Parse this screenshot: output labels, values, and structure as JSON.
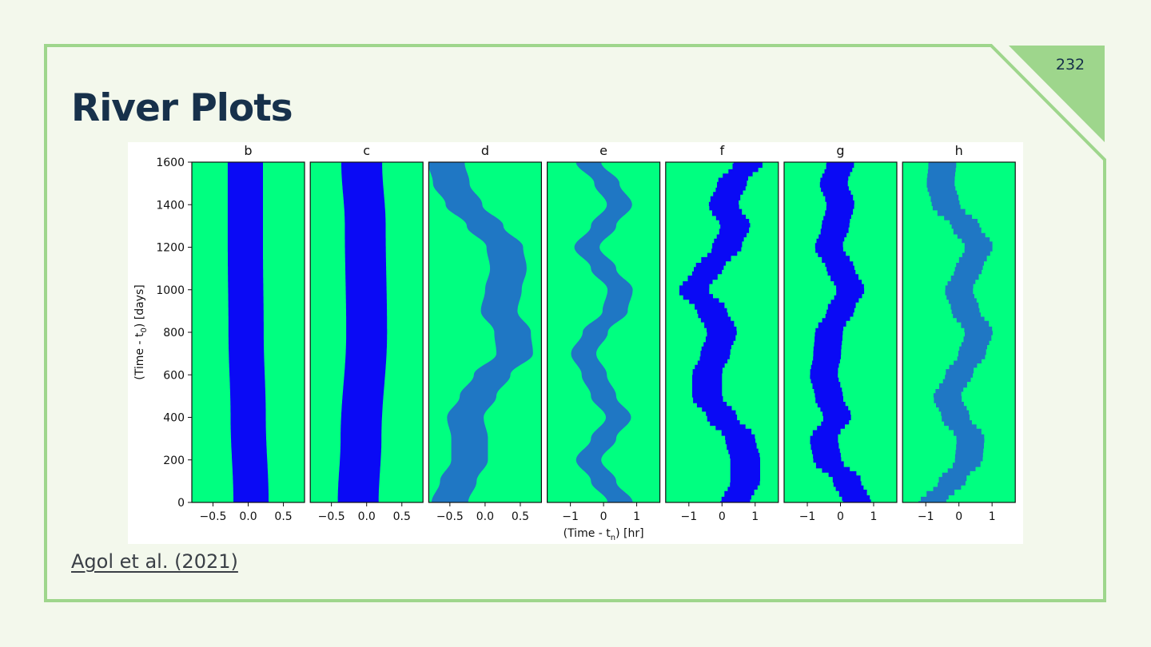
{
  "slide": {
    "title": "River Plots",
    "page_number": "232",
    "citation": "Agol et al. (2021)",
    "colors": {
      "background": "#f3f8ec",
      "frame": "#9ed68c",
      "title": "#17314b",
      "plot_background": "#00ff80",
      "river_dark": "#0a0af5",
      "river_teal": "#1f77c4"
    }
  },
  "chart_data": {
    "type": "heatmap",
    "ylabel_main": "(Time - t",
    "ylabel_sub": "0",
    "ylabel_tail": ") [days]",
    "xlabel_main": "(Time - t",
    "xlabel_sub": "n",
    "xlabel_tail": ") [hr]",
    "ylim": [
      0,
      1600
    ],
    "yticks": [
      0,
      200,
      400,
      600,
      800,
      1000,
      1200,
      1400,
      1600
    ],
    "panels": [
      {
        "title": "b",
        "xlim": [
          -0.8,
          0.8
        ],
        "xticks": [
          -0.5,
          0.0,
          0.5
        ],
        "xticklabels": [
          "−0.5",
          "0.0",
          "0.5"
        ],
        "color": "#0a0af5",
        "halfwidth": 0.25,
        "stepped": false,
        "centerline": [
          [
            0,
            0.04
          ],
          [
            400,
            0.0
          ],
          [
            800,
            -0.03
          ],
          [
            1200,
            -0.04
          ],
          [
            1600,
            -0.04
          ]
        ]
      },
      {
        "title": "c",
        "xlim": [
          -0.8,
          0.8
        ],
        "xticks": [
          -0.5,
          0.0,
          0.5
        ],
        "xticklabels": [
          "−0.5",
          "0.0",
          "0.5"
        ],
        "color": "#0a0af5",
        "halfwidth": 0.29,
        "stepped": false,
        "centerline": [
          [
            0,
            -0.12
          ],
          [
            300,
            -0.08
          ],
          [
            800,
            0.0
          ],
          [
            1300,
            -0.02
          ],
          [
            1600,
            -0.07
          ]
        ]
      },
      {
        "title": "d",
        "xlim": [
          -0.8,
          0.8
        ],
        "xticks": [
          -0.5,
          0.0,
          0.5
        ],
        "xticklabels": [
          "−0.5",
          "0.0",
          "0.5"
        ],
        "color": "#1f77c4",
        "halfwidth": 0.26,
        "stepped": false,
        "centerline": [
          [
            0,
            -0.5
          ],
          [
            100,
            -0.38
          ],
          [
            200,
            -0.22
          ],
          [
            300,
            -0.22
          ],
          [
            400,
            -0.28
          ],
          [
            500,
            -0.1
          ],
          [
            600,
            0.1
          ],
          [
            700,
            0.42
          ],
          [
            800,
            0.39
          ],
          [
            900,
            0.2
          ],
          [
            1000,
            0.26
          ],
          [
            1100,
            0.33
          ],
          [
            1200,
            0.28
          ],
          [
            1300,
            0.0
          ],
          [
            1400,
            -0.3
          ],
          [
            1500,
            -0.48
          ],
          [
            1600,
            -0.55
          ]
        ]
      },
      {
        "title": "e",
        "xlim": [
          -1.7,
          1.7
        ],
        "xticks": [
          -1,
          0,
          1
        ],
        "xticklabels": [
          "−1",
          "0",
          "1"
        ],
        "color": "#1f77c4",
        "halfwidth": 0.38,
        "stepped": false,
        "centerline": [
          [
            0,
            0.5
          ],
          [
            100,
            0.0
          ],
          [
            200,
            -0.45
          ],
          [
            300,
            0.0
          ],
          [
            400,
            0.45
          ],
          [
            500,
            0.0
          ],
          [
            600,
            -0.28
          ],
          [
            700,
            -0.6
          ],
          [
            800,
            -0.25
          ],
          [
            900,
            0.35
          ],
          [
            1000,
            0.5
          ],
          [
            1100,
            0.0
          ],
          [
            1200,
            -0.5
          ],
          [
            1300,
            0.0
          ],
          [
            1400,
            0.48
          ],
          [
            1500,
            0.1
          ],
          [
            1600,
            -0.45
          ]
        ]
      },
      {
        "title": "f",
        "xlim": [
          -1.7,
          1.7
        ],
        "xticks": [
          -1,
          0,
          1
        ],
        "xticklabels": [
          "−1",
          "0",
          "1"
        ],
        "color": "#0a0af5",
        "halfwidth": 0.45,
        "stepped": true,
        "centerline": [
          [
            0,
            0.4
          ],
          [
            100,
            0.7
          ],
          [
            200,
            0.7
          ],
          [
            300,
            0.55
          ],
          [
            400,
            0.0
          ],
          [
            500,
            -0.45
          ],
          [
            600,
            -0.45
          ],
          [
            700,
            -0.2
          ],
          [
            800,
            0.0
          ],
          [
            900,
            -0.3
          ],
          [
            1000,
            -0.85
          ],
          [
            1100,
            -0.4
          ],
          [
            1200,
            0.15
          ],
          [
            1300,
            0.4
          ],
          [
            1400,
            0.05
          ],
          [
            1500,
            0.3
          ],
          [
            1600,
            0.8
          ]
        ]
      },
      {
        "title": "g",
        "xlim": [
          -1.7,
          1.7
        ],
        "xticks": [
          -1,
          0,
          1
        ],
        "xticklabels": [
          "−1",
          "0",
          "1"
        ],
        "color": "#0a0af5",
        "halfwidth": 0.42,
        "stepped": true,
        "centerline": [
          [
            0,
            0.5
          ],
          [
            100,
            0.2
          ],
          [
            200,
            -0.4
          ],
          [
            300,
            -0.5
          ],
          [
            400,
            -0.1
          ],
          [
            500,
            -0.35
          ],
          [
            600,
            -0.5
          ],
          [
            700,
            -0.4
          ],
          [
            800,
            -0.35
          ],
          [
            900,
            0.0
          ],
          [
            1000,
            0.3
          ],
          [
            1100,
            0.0
          ],
          [
            1200,
            -0.35
          ],
          [
            1300,
            -0.15
          ],
          [
            1400,
            0.0
          ],
          [
            1500,
            -0.2
          ],
          [
            1600,
            0.0
          ]
        ]
      },
      {
        "title": "h",
        "xlim": [
          -1.7,
          1.7
        ],
        "xticks": [
          -1,
          0,
          1
        ],
        "xticklabels": [
          "−1",
          "0",
          "1"
        ],
        "color": "#1f77c4",
        "halfwidth": 0.42,
        "stepped": true,
        "centerline": [
          [
            0,
            -0.8
          ],
          [
            100,
            -0.2
          ],
          [
            200,
            0.3
          ],
          [
            300,
            0.35
          ],
          [
            400,
            -0.1
          ],
          [
            500,
            -0.35
          ],
          [
            600,
            0.0
          ],
          [
            700,
            0.4
          ],
          [
            800,
            0.6
          ],
          [
            900,
            0.2
          ],
          [
            1000,
            0.0
          ],
          [
            1100,
            0.3
          ],
          [
            1200,
            0.6
          ],
          [
            1300,
            0.2
          ],
          [
            1400,
            -0.4
          ],
          [
            1500,
            -0.55
          ],
          [
            1600,
            -0.5
          ]
        ]
      }
    ]
  }
}
